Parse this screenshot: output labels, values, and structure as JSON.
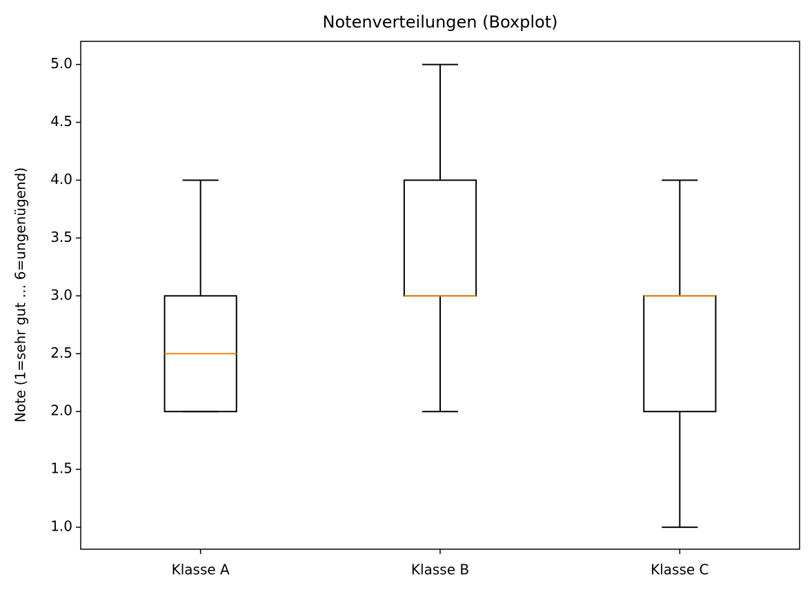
{
  "chart_data": {
    "type": "box",
    "title": "Notenverteilungen (Boxplot)",
    "y_label": "Note (1=sehr gut … 6=ungenügend)",
    "categories": [
      "Klasse A",
      "Klasse B",
      "Klasse C"
    ],
    "min": [
      2,
      2,
      1
    ],
    "q1": [
      2,
      3,
      2
    ],
    "median": [
      2.5,
      3,
      3
    ],
    "q3": [
      3,
      4,
      3
    ],
    "max": [
      4,
      5,
      4
    ],
    "color": "#000000",
    "median_color": "#ff7f0e",
    "ylim": [
      0.81,
      5.2
    ],
    "yticks": [
      {
        "value": 1,
        "label": "1.0"
      },
      {
        "value": 1.5,
        "label": "1.5"
      },
      {
        "value": 2,
        "label": "2.0"
      },
      {
        "value": 2.5,
        "label": "2.5"
      },
      {
        "value": 3,
        "label": "3.0"
      },
      {
        "value": 3.5,
        "label": "3.5"
      },
      {
        "value": 4,
        "label": "4.0"
      },
      {
        "value": 4.5,
        "label": "4.5"
      },
      {
        "value": 5,
        "label": "5.0"
      }
    ],
    "grid": false
  }
}
